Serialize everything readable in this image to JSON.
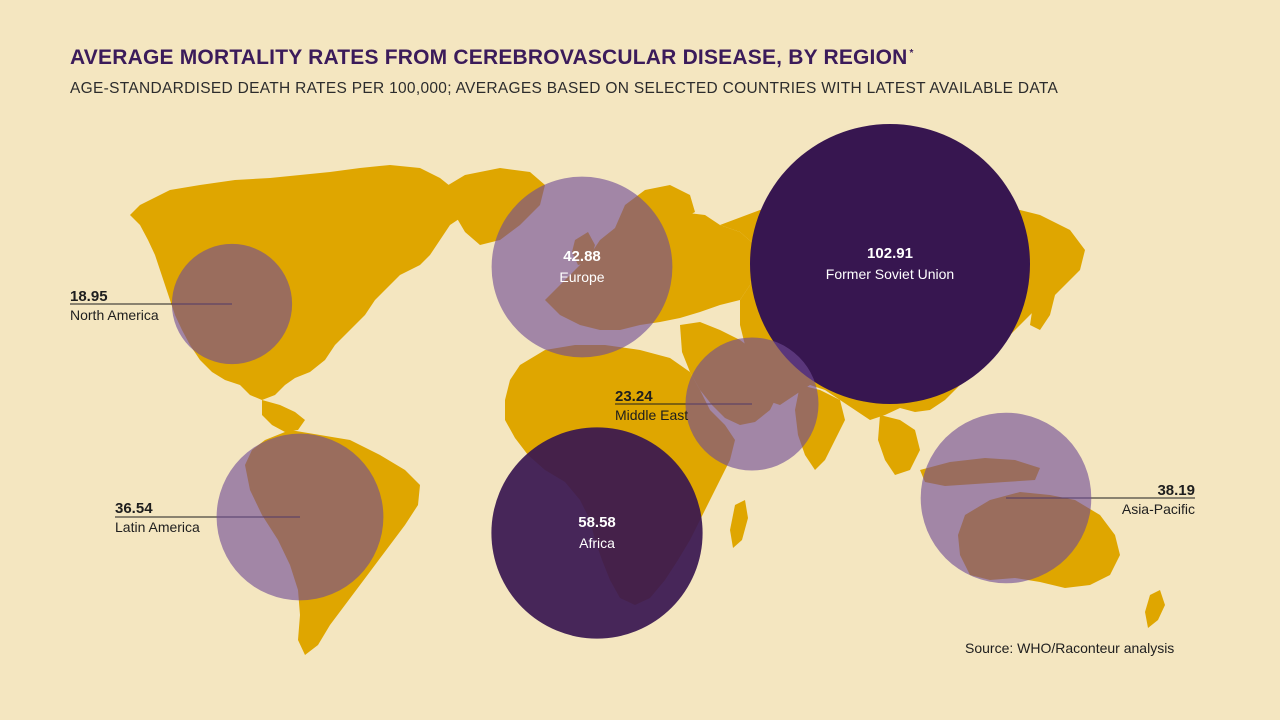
{
  "title": "AVERAGE MORTALITY RATES FROM CEREBROVASCULAR DISEASE, BY REGION",
  "title_marker": "*",
  "subtitle": "AGE-STANDARDISED DEATH RATES PER 100,000; AVERAGES BASED ON SELECTED COUNTRIES WITH LATEST AVAILABLE DATA",
  "source": "Source: WHO/Raconteur analysis",
  "colors": {
    "background": "#f4e6c0",
    "land": "#dfa600",
    "bubble_dark": "#371650",
    "bubble_light": "#6f4a96",
    "title": "#3b1b5a"
  },
  "regions": [
    {
      "name": "North America",
      "value_label": "18.95",
      "value": 18.95
    },
    {
      "name": "Europe",
      "value_label": "42.88",
      "value": 42.88
    },
    {
      "name": "Former Soviet Union",
      "value_label": "102.91",
      "value": 102.91
    },
    {
      "name": "Middle East",
      "value_label": "23.24",
      "value": 23.24
    },
    {
      "name": "Latin America",
      "value_label": "36.54",
      "value": 36.54
    },
    {
      "name": "Africa",
      "value_label": "58.58",
      "value": 58.58
    },
    {
      "name": "Asia-Pacific",
      "value_label": "38.19",
      "value": 38.19
    }
  ]
}
